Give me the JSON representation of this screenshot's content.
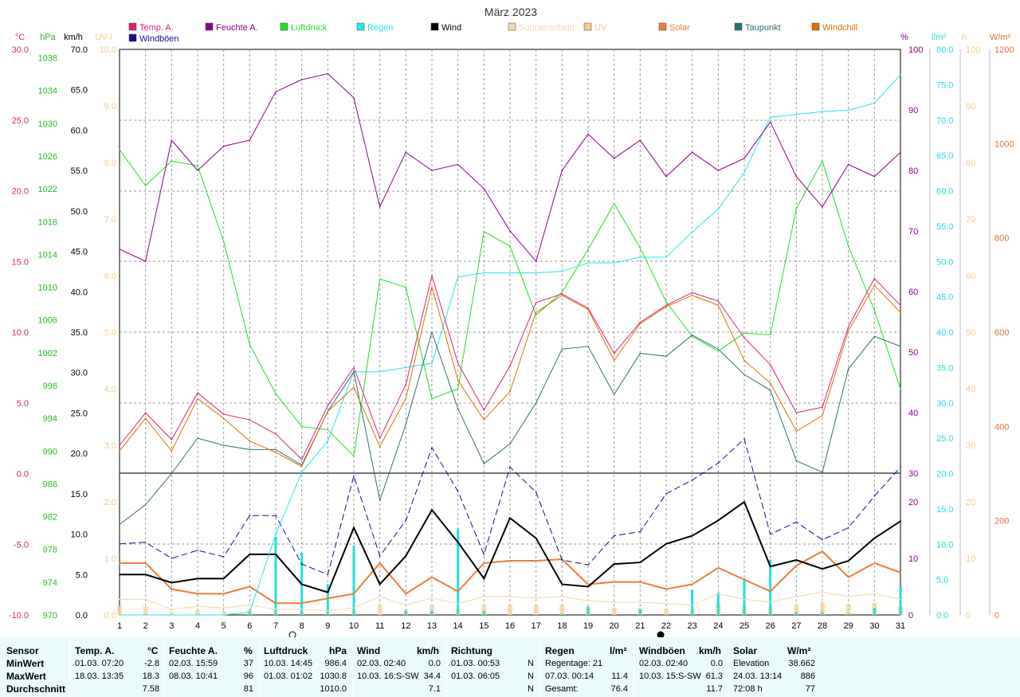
{
  "chart_data": {
    "type": "line",
    "title": "März 2023",
    "x": [
      1,
      2,
      3,
      4,
      5,
      6,
      7,
      8,
      9,
      10,
      11,
      12,
      13,
      14,
      15,
      16,
      17,
      18,
      19,
      20,
      21,
      22,
      23,
      24,
      25,
      26,
      27,
      28,
      29,
      30,
      31
    ],
    "x_ticks": [
      "1",
      "2",
      "3",
      "4",
      "5",
      "6",
      "7",
      "8",
      "9",
      "10",
      "11",
      "12",
      "13",
      "14",
      "15",
      "16",
      "17",
      "18",
      "19",
      "20",
      "21",
      "22",
      "23",
      "24",
      "25",
      "26",
      "27",
      "28",
      "29",
      "30",
      "31"
    ],
    "legend": [
      {
        "name": "Temp. A.",
        "color": "#e0207a"
      },
      {
        "name": "Feuchte A.",
        "color": "#8a008a"
      },
      {
        "name": "Luftdruck",
        "color": "#22dd22"
      },
      {
        "name": "Regen",
        "color": "#22e8e8"
      },
      {
        "name": "Wind",
        "color": "#000000"
      },
      {
        "name": "Sonnenschein",
        "color": "#f5d5a8"
      },
      {
        "name": "UV",
        "color": "#f7c98c"
      },
      {
        "name": "Solar",
        "color": "#f07a38"
      },
      {
        "name": "Taupunkt",
        "color": "#2a7070"
      },
      {
        "name": "Windchill",
        "color": "#e07000"
      },
      {
        "name": "Windböen",
        "color": "#101090"
      }
    ],
    "axes": {
      "temp": {
        "unit": "°C",
        "ticks": [
          "30.0",
          "25.0",
          "20.0",
          "15.0",
          "10.0",
          "5.0",
          "0.0",
          "-5.0",
          "-10.0"
        ],
        "color": "#e0207a"
      },
      "pressure": {
        "unit": "hPa",
        "ticks": [
          "1038",
          "1034",
          "1030",
          "1026",
          "1022",
          "1018",
          "1014",
          "1010",
          "1006",
          "1002",
          "998",
          "994",
          "990",
          "986",
          "982",
          "978",
          "974",
          "970"
        ],
        "color": "#22bb22"
      },
      "wind": {
        "unit": "km/h",
        "ticks": [
          "70.0",
          "65.0",
          "60.0",
          "55.0",
          "50.0",
          "45.0",
          "40.0",
          "35.0",
          "30.0",
          "25.0",
          "20.0",
          "15.0",
          "10.0",
          "5.0",
          "0.0"
        ],
        "color": "#000000"
      },
      "uv": {
        "unit": "UV-I",
        "ticks": [
          "10.0",
          "9.0",
          "8.0",
          "7.0",
          "6.0",
          "5.0",
          "4.0",
          "3.0",
          "2.0",
          "1.0",
          "0.0"
        ],
        "color": "#f7c98c"
      },
      "humidity_top": {
        "unit": "%",
        "ticks": [
          "100",
          "90",
          "80",
          "70",
          "60",
          "50",
          "40",
          "30"
        ],
        "color": "#8a008a"
      },
      "humidity_bottom": {
        "ticks": [
          "20",
          "10",
          "0"
        ],
        "color": "#8a008a"
      },
      "wind_bottom": {
        "ticks": [
          "20.0",
          "15.0",
          "10.0",
          "5.0",
          "0.0"
        ],
        "color": "#8a008a"
      },
      "rain": {
        "unit": "l/m²",
        "ticks": [
          "80.0",
          "75.0",
          "70.0",
          "65.0",
          "60.0",
          "55.0",
          "50.0",
          "45.0",
          "40.0",
          "35.0",
          "30.0",
          "25.0",
          "20.0",
          "15.0",
          "10.0",
          "5.0",
          "0.0"
        ],
        "color": "#22dddd"
      },
      "sun_hours": {
        "unit": "h",
        "ticks": [
          "100",
          "90",
          "80",
          "70",
          "60",
          "50",
          "40",
          "30",
          "20",
          "10",
          "0"
        ],
        "color": "#f7c98c"
      },
      "solar": {
        "unit": "W/m²",
        "ticks": [
          "1200",
          "1000",
          "800",
          "600",
          "400",
          "200",
          "0"
        ],
        "color": "#e07030"
      }
    },
    "series": [
      {
        "name": "Temp. A.",
        "axis": "temp",
        "values": [
          2.0,
          4.3,
          2.4,
          5.7,
          4.2,
          3.8,
          2.8,
          1.0,
          4.8,
          7.5,
          2.5,
          6.3,
          14.0,
          7.8,
          4.5,
          7.6,
          12.1,
          12.7,
          11.7,
          8.5,
          10.7,
          11.9,
          12.8,
          12.2,
          9.6,
          7.7,
          4.3,
          4.7,
          10.4,
          13.8,
          11.9
        ]
      },
      {
        "name": "Windchill",
        "axis": "temp",
        "values": [
          1.6,
          3.9,
          1.6,
          5.3,
          3.9,
          2.3,
          1.5,
          0.5,
          4.4,
          6.1,
          1.9,
          5.3,
          13.2,
          6.6,
          3.8,
          5.8,
          11.4,
          12.6,
          11.6,
          8.0,
          10.6,
          11.8,
          12.6,
          11.9,
          8.0,
          6.4,
          3.0,
          4.1,
          10.1,
          13.3,
          11.4
        ]
      },
      {
        "name": "Taupunkt",
        "axis": "temp",
        "values": [
          -3.6,
          -2.2,
          0.0,
          2.5,
          2.0,
          1.7,
          1.7,
          0.6,
          4.4,
          7.2,
          -1.9,
          3.5,
          10.0,
          4.6,
          0.7,
          2.1,
          5.0,
          8.8,
          9.0,
          5.6,
          8.5,
          8.3,
          9.8,
          8.8,
          7.0,
          5.9,
          0.9,
          0.1,
          7.4,
          9.7,
          9.0
        ]
      },
      {
        "name": "Feuchte A.",
        "axis": "humidity",
        "values": [
          67,
          65,
          85,
          80,
          84,
          85,
          93,
          95,
          96,
          92,
          74,
          83,
          80,
          81,
          77,
          70,
          65,
          80,
          86,
          82,
          85,
          79,
          83,
          80,
          82,
          88,
          79,
          74,
          81,
          79,
          83
        ]
      },
      {
        "name": "Luftdruck",
        "axis": "pressure",
        "values": [
          1026.8,
          1022.4,
          1025.4,
          1024.8,
          1015.6,
          1003.0,
          997.0,
          993.0,
          992.6,
          989.4,
          1011.0,
          1010.0,
          996.4,
          997.6,
          1016.8,
          1015.0,
          1006.6,
          1009.4,
          1014.6,
          1020.2,
          1014.8,
          1008.2,
          1004.0,
          1002.2,
          1004.4,
          1004.2,
          1019.6,
          1025.4,
          1015.0,
          1007.2,
          997.6
        ]
      },
      {
        "name": "Regen",
        "axis": "rain",
        "values": [
          0.0,
          0.0,
          0.0,
          0.0,
          0.0,
          0.4,
          11.4,
          20.2,
          24.6,
          34.4,
          34.4,
          35.0,
          35.6,
          47.8,
          48.4,
          48.4,
          48.4,
          48.6,
          49.8,
          49.8,
          50.6,
          50.6,
          54.2,
          57.4,
          62.6,
          70.4,
          70.8,
          71.2,
          71.4,
          72.4,
          76.4
        ]
      },
      {
        "name": "Wind",
        "axis": "wind",
        "values": [
          5.0,
          5.0,
          4.0,
          4.5,
          4.5,
          7.5,
          7.5,
          3.8,
          2.8,
          10.8,
          3.8,
          7.3,
          13.0,
          9.0,
          4.5,
          12.0,
          9.5,
          3.8,
          3.5,
          6.3,
          6.5,
          8.8,
          9.8,
          11.7,
          14.0,
          6.0,
          6.8,
          5.7,
          6.7,
          9.5,
          11.6
        ]
      },
      {
        "name": "Windböen",
        "axis": "wind",
        "values": [
          8.8,
          9.0,
          7.0,
          8.0,
          7.2,
          12.3,
          12.3,
          6.3,
          5.0,
          17.2,
          7.3,
          11.7,
          20.7,
          15.3,
          7.5,
          18.3,
          15.2,
          6.8,
          6.2,
          9.8,
          10.3,
          15.0,
          16.7,
          18.8,
          21.8,
          10.0,
          11.5,
          9.3,
          10.8,
          14.7,
          18.3
        ]
      },
      {
        "name": "Solar",
        "axis": "solar",
        "values": [
          110,
          110,
          55,
          45,
          45,
          60,
          25,
          25,
          35,
          45,
          110,
          45,
          80,
          50,
          110,
          115,
          115,
          118,
          65,
          70,
          70,
          55,
          65,
          100,
          75,
          50,
          105,
          135,
          80,
          110,
          90
        ]
      },
      {
        "name": "Sonnenschein",
        "axis": "sun_hours",
        "values": [
          11,
          11,
          4,
          6,
          5,
          7,
          4,
          4,
          3,
          5,
          13,
          7,
          12,
          8,
          13,
          13,
          12,
          13,
          10,
          9,
          9,
          8,
          7,
          15,
          11,
          9,
          13,
          16,
          13,
          15,
          11
        ]
      },
      {
        "name": "UV",
        "axis": "uv",
        "values": [
          0,
          1,
          0.3,
          0.1,
          0,
          0.1,
          0,
          0,
          0,
          0,
          0.6,
          0,
          0.3,
          0,
          0.5,
          0.5,
          0.5,
          0.5,
          0,
          0,
          0,
          0,
          0,
          0,
          0,
          0,
          0.4,
          0.6,
          0.1,
          0.4,
          0
        ]
      }
    ]
  },
  "stats": {
    "headers": {
      "sensor": "Sensor",
      "temp": "Temp. A.",
      "temp_unit": "°C",
      "hum": "Feuchte A.",
      "hum_unit": "%",
      "press": "Luftdruck",
      "press_unit": "hPa",
      "wind": "Wind",
      "wind_unit": "km/h",
      "dir": "Richtung",
      "rain": "Regen",
      "rain_unit": "l/m²",
      "gust": "Windböen",
      "gust_unit": "km/h",
      "solar": "Solar",
      "solar_unit": "W/m²"
    },
    "rows": {
      "min": "MinWert",
      "max": "MaxWert",
      "avg": "Durchschnitt"
    },
    "temp": {
      "min_time": "01.03.  07:20",
      "min_val": "-2.8",
      "max_time": "18.03.  13:35",
      "max_val": "18.3",
      "avg": "7.58"
    },
    "hum": {
      "min_time": "02.03.  15:59",
      "min_val": "37",
      "max_time": "08.03.  10:41",
      "max_val": "96",
      "avg": "81"
    },
    "press": {
      "min_time": "10.03.  14:45",
      "min_val": "986.4",
      "max_time": "01.03.  01:02",
      "max_val": "1030.8",
      "avg": "1010.0"
    },
    "wind": {
      "min_time": "02.03.  02:40",
      "min_val": "0.0",
      "max_time": "10.03.  16:S-SW",
      "max_val": "34.4",
      "avg": "7.1"
    },
    "dir": {
      "min_time": "01.03.  00:53",
      "min_val": "N",
      "max_time": "01.03.  06:05",
      "max_val": "N",
      "avg": "N"
    },
    "rain": {
      "l1": "Regentage: 21",
      "l2": "07.03.  00:14",
      "l2_val": "11.4",
      "l3": "Gesamt:",
      "l3_val": "76.4"
    },
    "gust": {
      "min_time": "02.03.  02:40",
      "min_val": "0.0",
      "max_time": "10.03.  15:S-SW",
      "max_val": "61.3",
      "avg": "11.7"
    },
    "solar": {
      "l1": "Elevation",
      "l1_val": "38.662",
      "l2": "24.03.  13:14",
      "l2_val": "886",
      "l3": "72:08 h",
      "l3_val": "77"
    }
  }
}
